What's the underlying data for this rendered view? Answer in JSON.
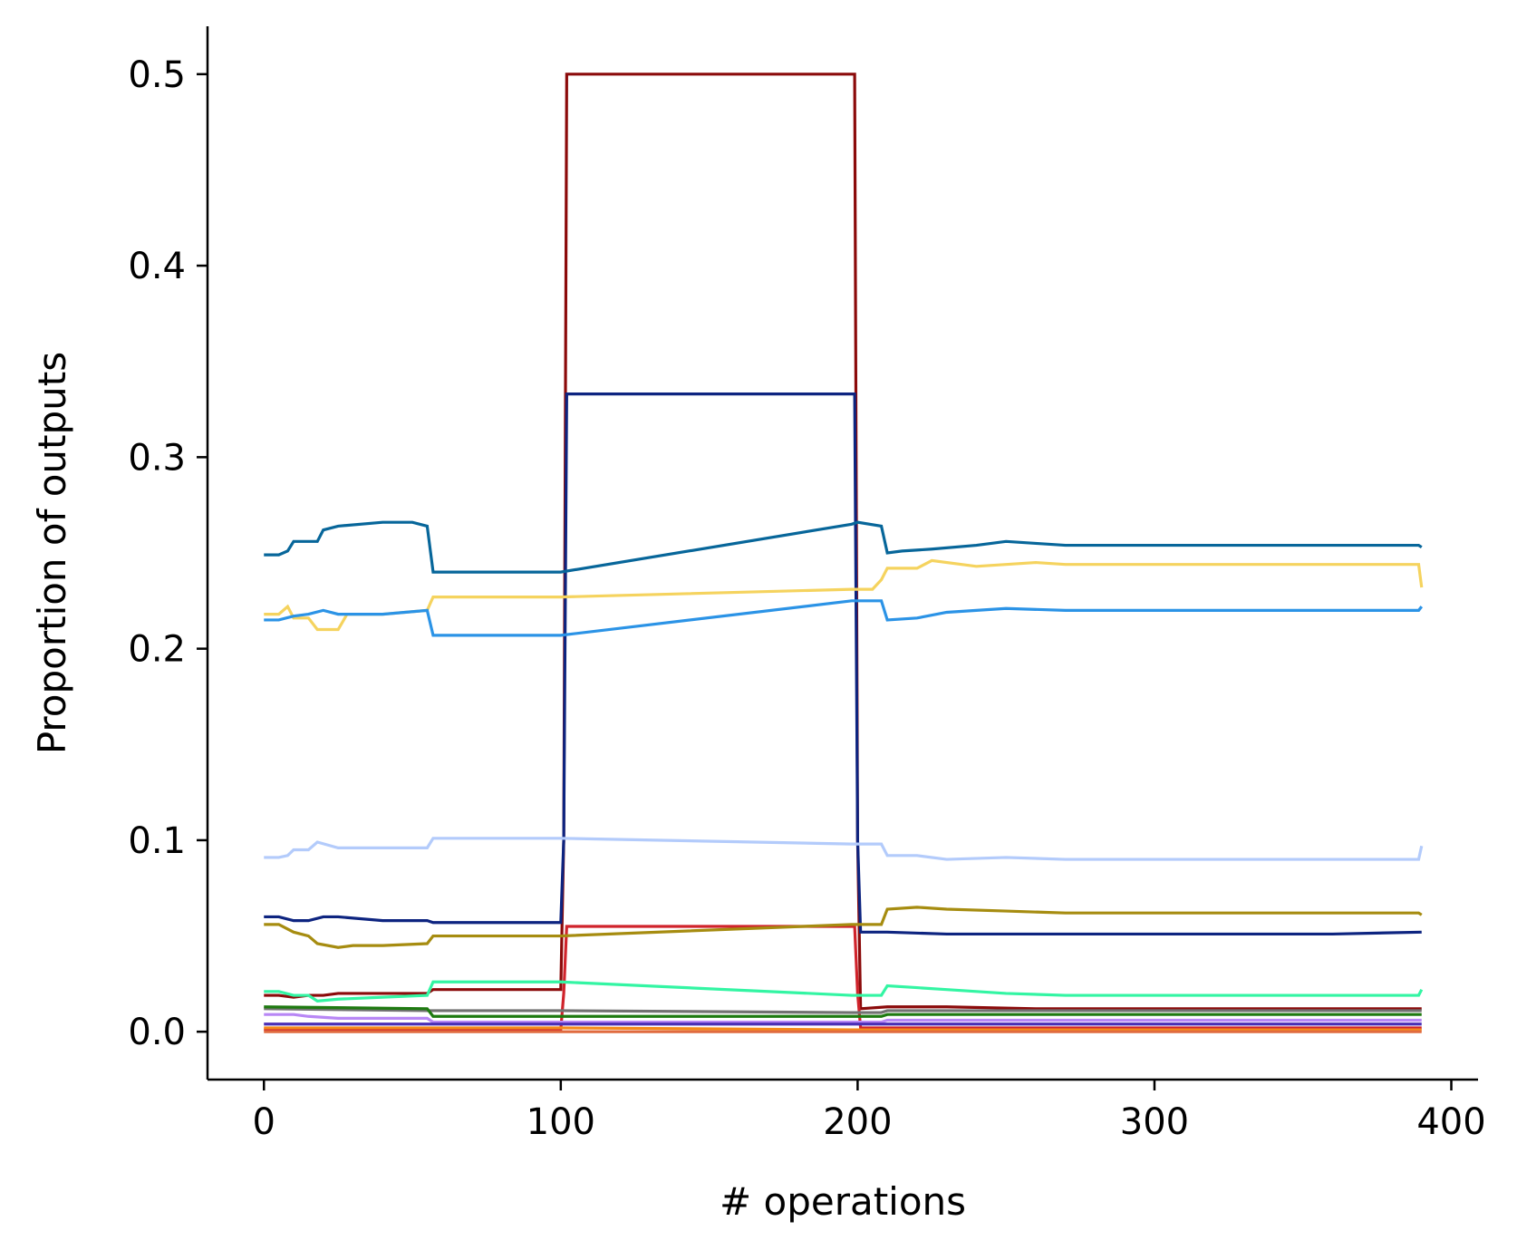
{
  "chart_data": {
    "type": "line",
    "title": "",
    "xlabel": "# operations",
    "ylabel": "Proportion of outputs",
    "xlim": [
      -19,
      409
    ],
    "ylim": [
      -0.025,
      0.525
    ],
    "xticks": [
      0,
      100,
      200,
      300,
      400
    ],
    "yticks": [
      0.0,
      0.1,
      0.2,
      0.3,
      0.4,
      0.5
    ],
    "xtick_labels": [
      "0",
      "100",
      "200",
      "300",
      "400"
    ],
    "ytick_labels": [
      "0.0",
      "0.1",
      "0.2",
      "0.3",
      "0.4",
      "0.5"
    ],
    "grid": false,
    "legend": "none",
    "series": [
      {
        "color": "#8b0a0a",
        "x": [
          0,
          5,
          10,
          15,
          20,
          25,
          35,
          45,
          55,
          57,
          80,
          100,
          101,
          102,
          103,
          198,
          199,
          200,
          201,
          210,
          230,
          260,
          300,
          360,
          390
        ],
        "y": [
          0.019,
          0.019,
          0.018,
          0.019,
          0.019,
          0.02,
          0.02,
          0.02,
          0.02,
          0.022,
          0.022,
          0.022,
          0.1,
          0.5,
          0.5,
          0.5,
          0.5,
          0.1,
          0.012,
          0.013,
          0.013,
          0.012,
          0.012,
          0.012,
          0.012
        ]
      },
      {
        "color": "#0d2480",
        "x": [
          0,
          5,
          10,
          15,
          20,
          25,
          40,
          55,
          57,
          80,
          100,
          101,
          102,
          103,
          198,
          199,
          200,
          201,
          210,
          230,
          260,
          300,
          360,
          390
        ],
        "y": [
          0.06,
          0.06,
          0.058,
          0.058,
          0.06,
          0.06,
          0.058,
          0.058,
          0.057,
          0.057,
          0.057,
          0.1,
          0.333,
          0.333,
          0.333,
          0.333,
          0.1,
          0.052,
          0.052,
          0.051,
          0.051,
          0.051,
          0.051,
          0.052
        ]
      },
      {
        "color": "#d0232b",
        "x": [
          0,
          55,
          57,
          100,
          101,
          102,
          103,
          198,
          199,
          200,
          201,
          210,
          260,
          300,
          360,
          390
        ],
        "y": [
          0.001,
          0.001,
          0.001,
          0.001,
          0.02,
          0.055,
          0.055,
          0.055,
          0.055,
          0.02,
          0.002,
          0.002,
          0.002,
          0.002,
          0.002,
          0.002
        ]
      },
      {
        "color": "#ffffff",
        "x": [
          102,
          103,
          198,
          199
        ],
        "y": [
          0.0,
          0.0,
          0.0,
          0.0
        ]
      },
      {
        "color": "#07669a",
        "x": [
          0,
          5,
          8,
          10,
          18,
          20,
          25,
          40,
          50,
          55,
          57,
          80,
          100,
          198,
          200,
          208,
          210,
          215,
          225,
          240,
          250,
          260,
          270,
          300,
          360,
          389,
          390
        ],
        "y": [
          0.249,
          0.249,
          0.251,
          0.256,
          0.256,
          0.262,
          0.264,
          0.266,
          0.266,
          0.264,
          0.24,
          0.24,
          0.24,
          0.265,
          0.266,
          0.264,
          0.25,
          0.251,
          0.252,
          0.254,
          0.256,
          0.255,
          0.254,
          0.254,
          0.254,
          0.254,
          0.253
        ]
      },
      {
        "color": "#f5d35e",
        "x": [
          0,
          5,
          8,
          10,
          15,
          18,
          25,
          28,
          40,
          55,
          57,
          80,
          100,
          198,
          200,
          205,
          208,
          210,
          220,
          225,
          240,
          260,
          270,
          300,
          360,
          389,
          390
        ],
        "y": [
          0.218,
          0.218,
          0.222,
          0.216,
          0.216,
          0.21,
          0.21,
          0.218,
          0.218,
          0.22,
          0.227,
          0.227,
          0.227,
          0.231,
          0.231,
          0.231,
          0.236,
          0.242,
          0.242,
          0.246,
          0.243,
          0.245,
          0.244,
          0.244,
          0.244,
          0.244,
          0.232
        ]
      },
      {
        "color": "#2b93e6",
        "x": [
          0,
          5,
          10,
          15,
          20,
          25,
          40,
          55,
          57,
          80,
          100,
          198,
          200,
          208,
          210,
          220,
          230,
          250,
          270,
          300,
          360,
          389,
          390
        ],
        "y": [
          0.215,
          0.215,
          0.217,
          0.218,
          0.22,
          0.218,
          0.218,
          0.22,
          0.207,
          0.207,
          0.207,
          0.225,
          0.225,
          0.225,
          0.215,
          0.216,
          0.219,
          0.221,
          0.22,
          0.22,
          0.22,
          0.22,
          0.222
        ]
      },
      {
        "color": "#b3cbfb",
        "x": [
          0,
          5,
          8,
          10,
          15,
          18,
          25,
          40,
          55,
          57,
          80,
          100,
          198,
          200,
          208,
          210,
          220,
          230,
          250,
          270,
          300,
          360,
          389,
          390
        ],
        "y": [
          0.091,
          0.091,
          0.092,
          0.095,
          0.095,
          0.099,
          0.096,
          0.096,
          0.096,
          0.101,
          0.101,
          0.101,
          0.098,
          0.098,
          0.098,
          0.092,
          0.092,
          0.09,
          0.091,
          0.09,
          0.09,
          0.09,
          0.09,
          0.097
        ]
      },
      {
        "color": "#a68c10",
        "x": [
          0,
          5,
          10,
          15,
          18,
          25,
          30,
          40,
          55,
          57,
          80,
          100,
          198,
          200,
          208,
          210,
          220,
          230,
          250,
          270,
          300,
          360,
          389,
          390
        ],
        "y": [
          0.056,
          0.056,
          0.052,
          0.05,
          0.046,
          0.044,
          0.045,
          0.045,
          0.046,
          0.05,
          0.05,
          0.05,
          0.056,
          0.056,
          0.056,
          0.064,
          0.065,
          0.064,
          0.063,
          0.062,
          0.062,
          0.062,
          0.062,
          0.061
        ]
      },
      {
        "color": "#33f5a3",
        "x": [
          0,
          5,
          10,
          15,
          18,
          25,
          40,
          55,
          57,
          80,
          100,
          198,
          200,
          208,
          210,
          220,
          230,
          250,
          270,
          300,
          360,
          389,
          390
        ],
        "y": [
          0.021,
          0.021,
          0.019,
          0.019,
          0.016,
          0.017,
          0.018,
          0.019,
          0.026,
          0.026,
          0.026,
          0.019,
          0.019,
          0.019,
          0.024,
          0.023,
          0.022,
          0.02,
          0.019,
          0.019,
          0.019,
          0.019,
          0.022
        ]
      },
      {
        "color": "#727272",
        "x": [
          0,
          55,
          57,
          100,
          198,
          200,
          208,
          210,
          260,
          300,
          360,
          390
        ],
        "y": [
          0.012,
          0.011,
          0.011,
          0.011,
          0.01,
          0.01,
          0.01,
          0.011,
          0.011,
          0.011,
          0.011,
          0.011
        ]
      },
      {
        "color": "#1e7a10",
        "x": [
          0,
          55,
          57,
          100,
          198,
          200,
          208,
          210,
          260,
          300,
          360,
          390
        ],
        "y": [
          0.013,
          0.012,
          0.008,
          0.008,
          0.008,
          0.008,
          0.008,
          0.009,
          0.009,
          0.009,
          0.009,
          0.009
        ]
      },
      {
        "color": "#b887f5",
        "x": [
          0,
          5,
          10,
          15,
          25,
          40,
          55,
          57,
          80,
          100,
          198,
          200,
          208,
          210,
          260,
          300,
          360,
          390
        ],
        "y": [
          0.009,
          0.009,
          0.009,
          0.008,
          0.007,
          0.007,
          0.007,
          0.005,
          0.005,
          0.005,
          0.005,
          0.005,
          0.005,
          0.006,
          0.006,
          0.006,
          0.006,
          0.006
        ]
      },
      {
        "color": "#4a2fb5",
        "x": [
          0,
          55,
          57,
          100,
          198,
          200,
          208,
          210,
          260,
          300,
          360,
          390
        ],
        "y": [
          0.004,
          0.004,
          0.004,
          0.004,
          0.004,
          0.004,
          0.004,
          0.004,
          0.004,
          0.004,
          0.004,
          0.004
        ]
      },
      {
        "color": "#f58a1a",
        "x": [
          0,
          55,
          57,
          100,
          198,
          200,
          208,
          210,
          260,
          300,
          360,
          390
        ],
        "y": [
          0.002,
          0.002,
          0.002,
          0.002,
          0.001,
          0.001,
          0.001,
          0.001,
          0.001,
          0.001,
          0.001,
          0.001
        ]
      },
      {
        "color": "#e06b3f",
        "x": [
          0,
          55,
          57,
          100,
          198,
          200,
          208,
          210,
          260,
          300,
          360,
          390
        ],
        "y": [
          0.0,
          0.0,
          0.0,
          0.0,
          0.0,
          0.0,
          0.0,
          0.0,
          0.0,
          0.0,
          0.0,
          0.0
        ]
      }
    ]
  }
}
